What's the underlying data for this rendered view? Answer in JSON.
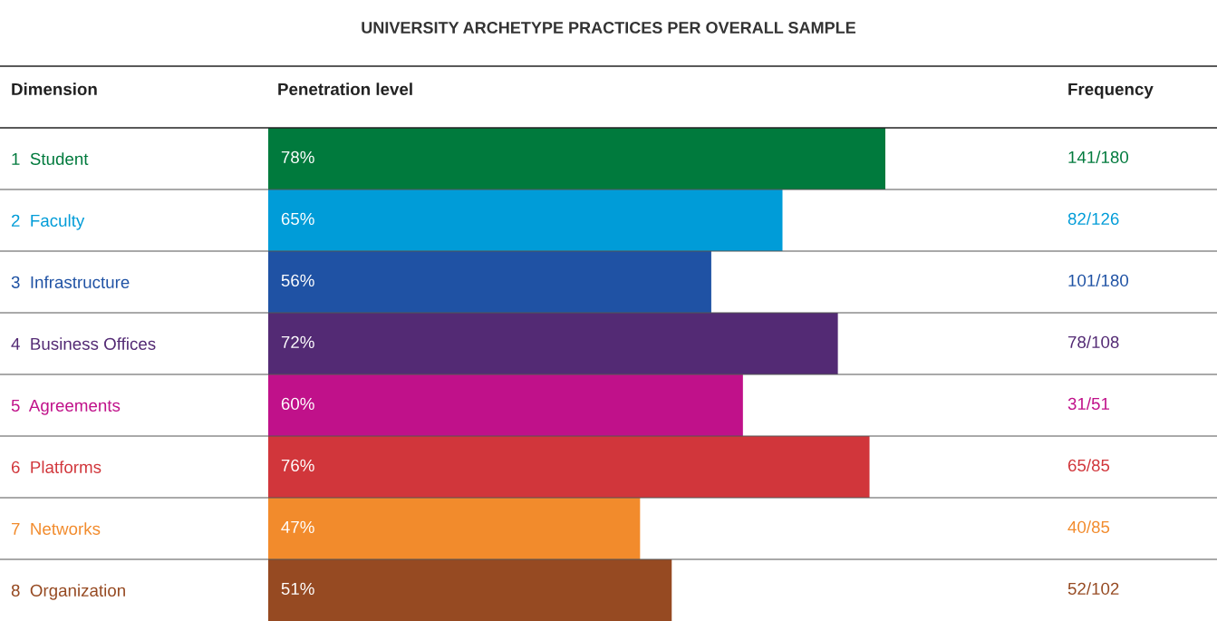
{
  "chart_data": {
    "type": "bar",
    "orientation": "horizontal",
    "title": "UNIVERSITY ARCHETYPE PRACTICES PER OVERALL SAMPLE",
    "ylabel": "Dimension",
    "xlabel": "Penetration level",
    "categories": [
      "1  Student",
      "2  Faculty",
      "3  Infrastructure",
      "4  Business Offices",
      "5  Agreements",
      "6  Platforms",
      "7  Networks",
      "8  Organization"
    ],
    "values": [
      78,
      65,
      56,
      72,
      60,
      76,
      47,
      51
    ],
    "value_labels": [
      "78%",
      "65%",
      "56%",
      "72%",
      "60%",
      "76%",
      "47%",
      "51%"
    ],
    "colors": [
      "#007a3d",
      "#009cd8",
      "#1f52a4",
      "#532a74",
      "#c0118a",
      "#d1363b",
      "#f28b2c",
      "#964a22"
    ],
    "annotations": [
      "Frequency",
      "141/180",
      "82/126",
      "101/180",
      "78/108",
      "31/51",
      "65/85",
      "40/85",
      "52/102"
    ],
    "tick_labels": "y",
    "grid": false,
    "legend": false
  }
}
